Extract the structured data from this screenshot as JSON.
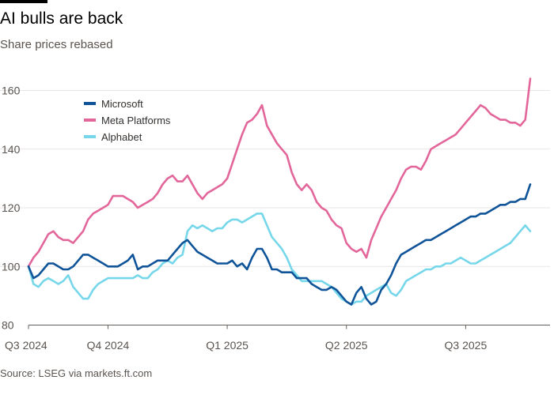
{
  "title": "AI bulls are back",
  "subtitle": "Share prices rebased",
  "source": "Source: LSEG via markets.ft.com",
  "chart_data": {
    "type": "line",
    "title": "AI bulls are back",
    "subtitle": "Share prices rebased",
    "ylim": [
      80,
      165
    ],
    "yticks": [
      80,
      100,
      120,
      140,
      160
    ],
    "xlim": [
      0,
      101
    ],
    "xticks": [
      {
        "label": "Q3 2024",
        "x": 0
      },
      {
        "label": "Q4 2024",
        "x": 16
      },
      {
        "label": "Q1 2025",
        "x": 40
      },
      {
        "label": "Q2 2025",
        "x": 64
      },
      {
        "label": "Q3 2025",
        "x": 88
      }
    ],
    "grid": "horizontal",
    "legend_position": "top-left",
    "x_unit": "weeks since start of Q3 2024",
    "series": [
      {
        "name": "Microsoft",
        "color": "#0f5499",
        "values": [
          100,
          96,
          97,
          99,
          101,
          101,
          100,
          99,
          99,
          100,
          102,
          104,
          104,
          103,
          102,
          101,
          100,
          100,
          100,
          101,
          102,
          104,
          99,
          100,
          100,
          101,
          102,
          102,
          102,
          104,
          106,
          108,
          109,
          107,
          105,
          104,
          103,
          102,
          101,
          101,
          101,
          102,
          100,
          101,
          99,
          103,
          106,
          106,
          103,
          99,
          99,
          98,
          98,
          98,
          96,
          96,
          96,
          94,
          93,
          92,
          92,
          93,
          92,
          90,
          88,
          87,
          91,
          93,
          89,
          87,
          88,
          92,
          94,
          97,
          101,
          104,
          105,
          106,
          107,
          108,
          109,
          109,
          110,
          111,
          112,
          113,
          114,
          115,
          116,
          117,
          117,
          118,
          118,
          119,
          120,
          121,
          121,
          122,
          122,
          123,
          123,
          128
        ]
      },
      {
        "name": "Meta Platforms",
        "color": "#e3669b",
        "values": [
          100,
          103,
          105,
          108,
          111,
          112,
          110,
          109,
          109,
          108,
          110,
          112,
          116,
          118,
          119,
          120,
          121,
          124,
          124,
          124,
          123,
          122,
          120,
          121,
          122,
          123,
          125,
          128,
          130,
          131,
          129,
          129,
          131,
          128,
          125,
          123,
          125,
          126,
          127,
          128,
          130,
          135,
          140,
          145,
          149,
          150,
          152,
          155,
          148,
          145,
          142,
          140,
          138,
          132,
          128,
          126,
          128,
          126,
          122,
          120,
          119,
          116,
          114,
          113,
          108,
          106,
          105,
          106,
          103,
          109,
          113,
          117,
          120,
          123,
          126,
          130,
          133,
          134,
          134,
          133,
          136,
          140,
          141,
          142,
          143,
          144,
          145,
          147,
          149,
          151,
          153,
          155,
          154,
          152,
          151,
          150,
          150,
          149,
          149,
          148,
          150,
          164
        ]
      },
      {
        "name": "Alphabet",
        "color": "#76d7ea",
        "values": [
          100,
          94,
          93,
          95,
          96,
          95,
          94,
          95,
          97,
          93,
          91,
          89,
          89,
          92,
          94,
          95,
          96,
          96,
          96,
          96,
          96,
          96,
          97,
          96,
          96,
          98,
          99,
          101,
          102,
          101,
          103,
          104,
          112,
          114,
          113,
          114,
          113,
          112,
          113,
          113,
          115,
          116,
          116,
          115,
          116,
          117,
          118,
          118,
          114,
          110,
          108,
          106,
          103,
          99,
          97,
          95,
          95,
          95,
          95,
          95,
          94,
          93,
          91,
          89,
          88,
          87,
          88,
          88,
          90,
          91,
          92,
          93,
          94,
          91,
          90,
          92,
          95,
          96,
          97,
          98,
          99,
          99,
          100,
          100,
          101,
          101,
          102,
          103,
          102,
          101,
          101,
          102,
          103,
          104,
          105,
          106,
          107,
          108,
          110,
          112,
          114,
          112
        ]
      }
    ]
  }
}
